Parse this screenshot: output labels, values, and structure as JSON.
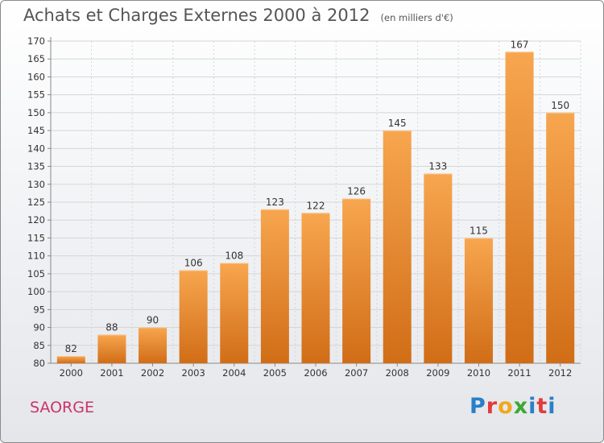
{
  "title": "Achats et Charges Externes 2000 à 2012",
  "subtitle": "(en milliers d'€)",
  "location": "SAORGE",
  "logo": {
    "text": "Proxiti",
    "letters": [
      "P",
      "r",
      "o",
      "x",
      "i",
      "t",
      "i"
    ],
    "colors": [
      "#2a7fc9",
      "#e23b3b",
      "#f1a81c",
      "#3aa935",
      "#2a7fc9",
      "#e23b3b",
      "#2a7fc9"
    ]
  },
  "colors": {
    "bar_top": "#f7a64f",
    "bar_bottom": "#d16d17",
    "title": "#555555",
    "location": "#cc3366"
  },
  "chart_data": {
    "type": "bar",
    "categories": [
      "2000",
      "2001",
      "2002",
      "2003",
      "2004",
      "2005",
      "2006",
      "2007",
      "2008",
      "2009",
      "2010",
      "2011",
      "2012"
    ],
    "values": [
      82,
      88,
      90,
      106,
      108,
      123,
      122,
      126,
      145,
      133,
      115,
      167,
      150
    ],
    "ylim": [
      80,
      170
    ],
    "yticks": [
      80,
      85,
      90,
      95,
      100,
      105,
      110,
      115,
      120,
      125,
      130,
      135,
      140,
      145,
      150,
      155,
      160,
      165,
      170
    ],
    "xlabel": "",
    "ylabel": "",
    "grid": true
  }
}
